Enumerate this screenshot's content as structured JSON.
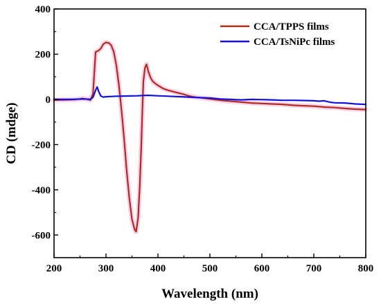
{
  "chart_data": {
    "type": "line",
    "xlabel": "Wavelength (nm)",
    "ylabel": "CD (mdge)",
    "xlim": [
      200,
      800
    ],
    "ylim": [
      -700,
      400
    ],
    "xticks": [
      200,
      300,
      400,
      500,
      600,
      700,
      800
    ],
    "yticks": [
      -600,
      -400,
      -200,
      0,
      200,
      400
    ],
    "grid": false,
    "legend_position": "top-right",
    "series": [
      {
        "name": "CCA/TPPS films",
        "color": "#b22a1a",
        "x": [
          200,
          220,
          240,
          255,
          265,
          270,
          275,
          280,
          285,
          290,
          295,
          300,
          305,
          310,
          315,
          320,
          325,
          330,
          335,
          340,
          345,
          350,
          355,
          358,
          362,
          365,
          368,
          370,
          372,
          375,
          378,
          382,
          386,
          390,
          395,
          400,
          410,
          420,
          430,
          440,
          450,
          460,
          470,
          480,
          490,
          500,
          520,
          540,
          560,
          580,
          600,
          620,
          640,
          660,
          680,
          700,
          720,
          740,
          760,
          780,
          800
        ],
        "y": [
          -3,
          -2,
          -1,
          4,
          0,
          -3,
          25,
          210,
          215,
          225,
          245,
          252,
          250,
          240,
          210,
          150,
          60,
          -50,
          -180,
          -320,
          -440,
          -530,
          -575,
          -585,
          -520,
          -380,
          -200,
          -50,
          80,
          140,
          155,
          120,
          95,
          80,
          70,
          62,
          48,
          40,
          34,
          28,
          22,
          15,
          10,
          8,
          5,
          2,
          -4,
          -8,
          -12,
          -16,
          -18,
          -20,
          -22,
          -26,
          -28,
          -30,
          -34,
          -36,
          -40,
          -43,
          -45
        ]
      },
      {
        "name": "CCA/TsNiPc films",
        "color": "#1010e0",
        "x": [
          200,
          230,
          260,
          270,
          275,
          280,
          283,
          286,
          290,
          295,
          300,
          320,
          340,
          360,
          380,
          400,
          420,
          440,
          460,
          480,
          500,
          520,
          540,
          560,
          580,
          600,
          620,
          640,
          660,
          680,
          700,
          710,
          720,
          730,
          740,
          760,
          780,
          800
        ],
        "y": [
          0,
          0,
          2,
          0,
          10,
          40,
          55,
          35,
          15,
          10,
          12,
          14,
          15,
          16,
          18,
          16,
          14,
          12,
          10,
          8,
          6,
          2,
          0,
          -2,
          0,
          -1,
          -2,
          -4,
          -4,
          -5,
          -6,
          -8,
          -6,
          -12,
          -15,
          -16,
          -20,
          -22
        ]
      }
    ]
  }
}
